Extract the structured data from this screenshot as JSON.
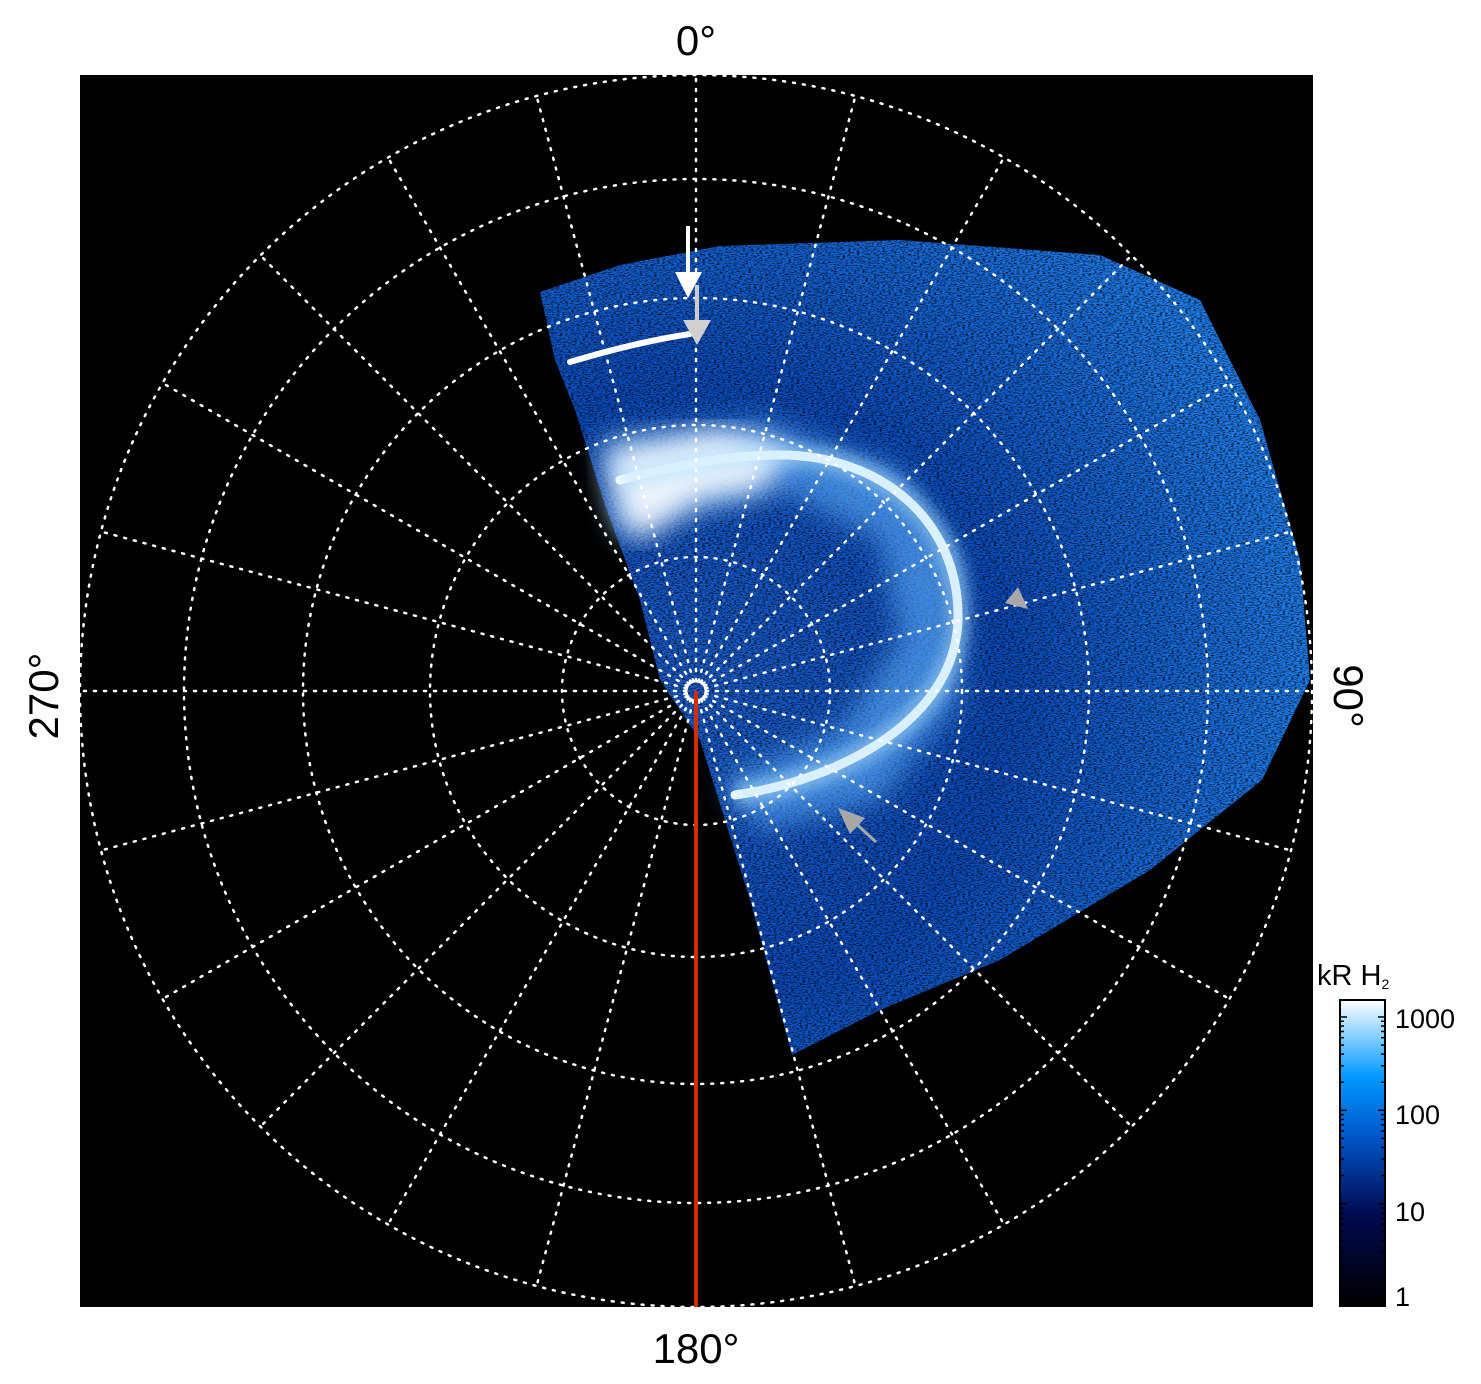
{
  "chart_data": {
    "type": "heatmap",
    "projection": "polar",
    "title": "",
    "angle_labels": {
      "top": "0°",
      "right": "90°",
      "bottom": "180°",
      "left": "270°"
    },
    "angular_grid_step_deg": 15,
    "ring_count": 5,
    "grid": true,
    "colorbar": {
      "title": "kR H",
      "title_subscript": "2",
      "scale": "log",
      "range": [
        1,
        1000
      ],
      "ticks": [
        "1000",
        "100",
        "10",
        "1"
      ],
      "colors": [
        "#000000",
        "#000a50",
        "#0055c8",
        "#0099ff",
        "#ffffff"
      ],
      "placement": "bottom-right"
    },
    "annotations": [
      {
        "type": "arrow",
        "color": "#ffffff",
        "direction": "down"
      },
      {
        "type": "arrow",
        "color": "#c8c8c8",
        "direction": "down"
      },
      {
        "type": "arrowhead",
        "color": "#a0a0a0",
        "direction": "up-left"
      },
      {
        "type": "arrowhead",
        "color": "#a0a0a0",
        "direction": "up-left"
      },
      {
        "type": "line",
        "color": "#d03000",
        "direction": "180°"
      }
    ]
  }
}
